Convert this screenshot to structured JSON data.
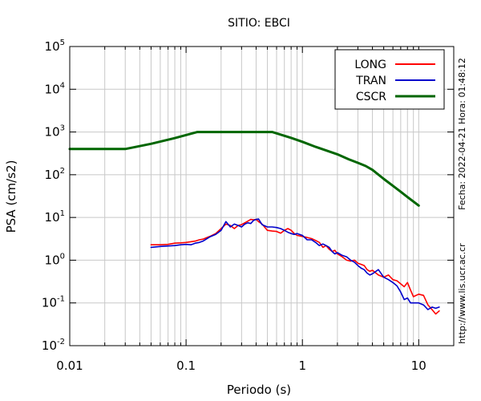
{
  "chart_data": {
    "type": "line",
    "title": "SITIO: EBCI",
    "xlabel": "Periodo (s)",
    "ylabel": "PSA (cm/s2)",
    "x_scale": "log",
    "y_scale": "log",
    "xlim": [
      0.01,
      20
    ],
    "ylim": [
      0.01,
      100000
    ],
    "grid": true,
    "legend_position": "top-right",
    "x_tick_labels": [
      "0.01",
      "0.1",
      "1",
      "10"
    ],
    "y_tick_labels": [
      {
        "base": "10",
        "exp": "-2"
      },
      {
        "base": "10",
        "exp": "-1"
      },
      {
        "base": "10",
        "exp": "0"
      },
      {
        "base": "10",
        "exp": "1"
      },
      {
        "base": "10",
        "exp": "2"
      },
      {
        "base": "10",
        "exp": "3"
      },
      {
        "base": "10",
        "exp": "4"
      },
      {
        "base": "10",
        "exp": "5"
      }
    ],
    "side_notes": [
      "Fecha: 2022-04-21 Hora: 01:48:12",
      "http://www.lis.ucr.ac.cr"
    ],
    "series": [
      {
        "name": "LONG",
        "color": "#ff0000",
        "x": [
          0.05,
          0.06,
          0.07,
          0.08,
          0.09,
          0.1,
          0.11,
          0.12,
          0.13,
          0.14,
          0.16,
          0.18,
          0.2,
          0.22,
          0.24,
          0.26,
          0.28,
          0.3,
          0.32,
          0.34,
          0.36,
          0.38,
          0.4,
          0.42,
          0.45,
          0.5,
          0.55,
          0.6,
          0.65,
          0.7,
          0.75,
          0.8,
          0.85,
          0.9,
          1.0,
          1.1,
          1.2,
          1.3,
          1.4,
          1.5,
          1.6,
          1.7,
          1.8,
          1.9,
          2.0,
          2.2,
          2.4,
          2.6,
          2.8,
          3.0,
          3.2,
          3.4,
          3.6,
          3.8,
          4.0,
          4.5,
          5.0,
          5.5,
          6.0,
          6.5,
          7.0,
          7.5,
          8.0,
          8.5,
          9.0,
          10.0,
          11.0,
          12.0,
          13.0,
          14.0,
          15.0
        ],
        "y": [
          2.3,
          2.3,
          2.35,
          2.5,
          2.55,
          2.6,
          2.7,
          2.8,
          3.0,
          3.1,
          3.6,
          4.2,
          5.5,
          7.0,
          6.5,
          5.5,
          6.5,
          6.8,
          7.5,
          8.2,
          9.0,
          8.8,
          9.0,
          8.0,
          7.0,
          5.0,
          4.8,
          4.7,
          4.3,
          5.0,
          5.5,
          5.0,
          4.2,
          3.8,
          3.6,
          3.4,
          3.2,
          2.9,
          2.6,
          2.0,
          2.2,
          1.8,
          1.6,
          1.7,
          1.4,
          1.2,
          1.0,
          0.95,
          1.0,
          0.85,
          0.8,
          0.75,
          0.6,
          0.55,
          0.58,
          0.45,
          0.4,
          0.45,
          0.35,
          0.33,
          0.28,
          0.24,
          0.3,
          0.2,
          0.14,
          0.16,
          0.15,
          0.09,
          0.07,
          0.055,
          0.065
        ]
      },
      {
        "name": "TRAN",
        "color": "#0000cc",
        "x": [
          0.05,
          0.06,
          0.07,
          0.08,
          0.09,
          0.1,
          0.11,
          0.12,
          0.13,
          0.14,
          0.16,
          0.18,
          0.2,
          0.22,
          0.24,
          0.26,
          0.28,
          0.3,
          0.32,
          0.34,
          0.36,
          0.38,
          0.4,
          0.42,
          0.45,
          0.5,
          0.55,
          0.6,
          0.65,
          0.7,
          0.75,
          0.8,
          0.85,
          0.9,
          1.0,
          1.1,
          1.2,
          1.3,
          1.4,
          1.5,
          1.6,
          1.7,
          1.8,
          1.9,
          2.0,
          2.2,
          2.4,
          2.6,
          2.8,
          3.0,
          3.2,
          3.4,
          3.6,
          3.8,
          4.0,
          4.5,
          5.0,
          5.5,
          6.0,
          6.5,
          7.0,
          7.5,
          8.0,
          8.5,
          9.0,
          10.0,
          11.0,
          12.0,
          13.0,
          14.0,
          15.0
        ],
        "y": [
          2.0,
          2.1,
          2.15,
          2.2,
          2.3,
          2.35,
          2.3,
          2.5,
          2.6,
          2.8,
          3.5,
          4.0,
          5.0,
          8.0,
          6.0,
          7.0,
          6.5,
          6.0,
          7.0,
          7.5,
          7.2,
          8.5,
          9.0,
          9.2,
          6.8,
          6.0,
          6.0,
          5.8,
          5.5,
          5.0,
          4.5,
          4.2,
          4.0,
          4.2,
          3.8,
          3.0,
          3.0,
          2.6,
          2.2,
          2.4,
          2.2,
          2.0,
          1.6,
          1.4,
          1.5,
          1.3,
          1.2,
          1.0,
          0.9,
          0.75,
          0.65,
          0.6,
          0.5,
          0.45,
          0.48,
          0.6,
          0.4,
          0.35,
          0.3,
          0.25,
          0.18,
          0.12,
          0.13,
          0.1,
          0.1,
          0.1,
          0.09,
          0.07,
          0.08,
          0.075,
          0.08
        ]
      },
      {
        "name": "CSCR",
        "color": "#006600",
        "x": [
          0.01,
          0.03,
          0.05,
          0.08,
          0.125,
          0.2,
          0.3,
          0.4,
          0.55,
          0.8,
          1.0,
          1.3,
          1.6,
          2.0,
          2.5,
          3.0,
          3.5,
          4.0,
          5.0,
          6.0,
          7.0,
          8.0,
          10.0
        ],
        "y": [
          400,
          400,
          530,
          720,
          1000,
          1000,
          1000,
          1000,
          1000,
          730,
          590,
          450,
          370,
          300,
          230,
          190,
          160,
          130,
          80,
          55,
          40,
          30,
          19
        ]
      }
    ]
  }
}
